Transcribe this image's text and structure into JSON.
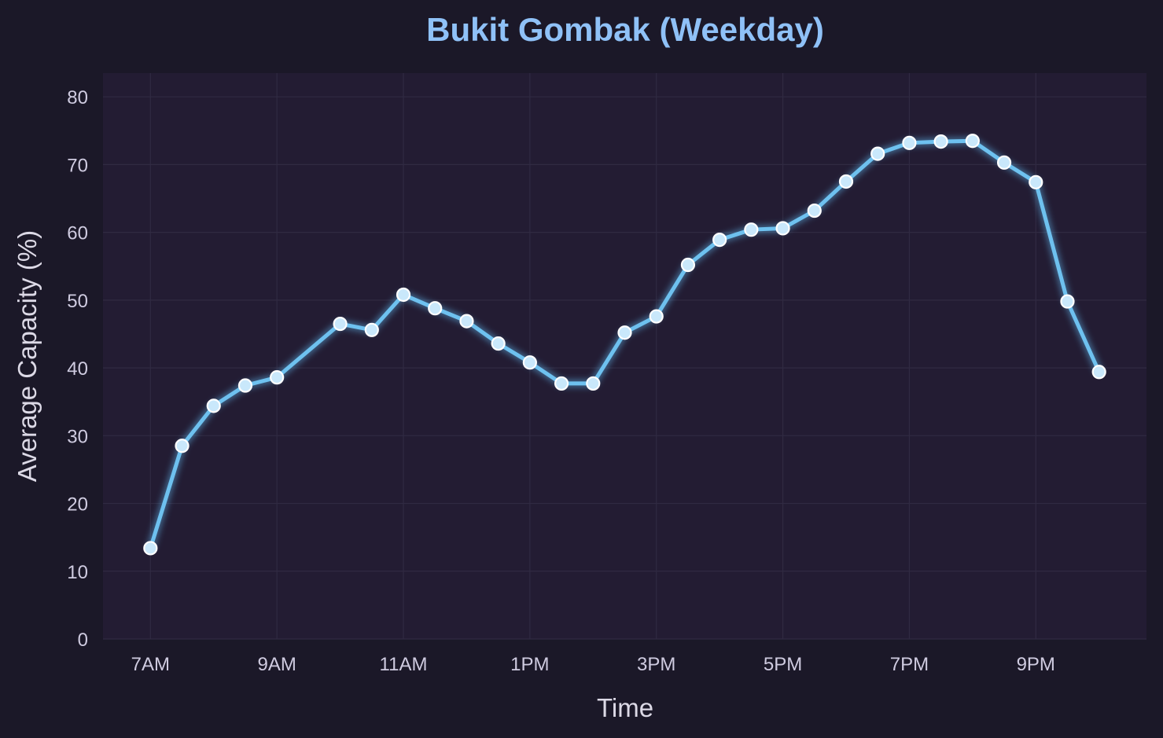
{
  "colors": {
    "background": "#1b1828",
    "plot_background": "#231c33",
    "grid": "#302a42",
    "line": "#6ec1ef",
    "line_glow": "#5aa8da",
    "marker_fill": "#c9e8fb",
    "marker_edge": "#ffffff",
    "title": "#8fc1f7",
    "axis_text": "#dcd9e6",
    "tick_text": "#cfcbe0"
  },
  "chart_data": {
    "type": "line",
    "title": "Bukit Gombak (Weekday)",
    "xlabel": "Time",
    "ylabel": "Average Capacity (%)",
    "xlim": [
      6.25,
      22.75
    ],
    "ylim": [
      0,
      83.5
    ],
    "grid": true,
    "x_ticks": [
      {
        "value": 7,
        "label": "7AM"
      },
      {
        "value": 9,
        "label": "9AM"
      },
      {
        "value": 11,
        "label": "11AM"
      },
      {
        "value": 13,
        "label": "1PM"
      },
      {
        "value": 15,
        "label": "3PM"
      },
      {
        "value": 17,
        "label": "5PM"
      },
      {
        "value": 19,
        "label": "7PM"
      },
      {
        "value": 21,
        "label": "9PM"
      }
    ],
    "y_ticks": [
      {
        "value": 0,
        "label": "0"
      },
      {
        "value": 10,
        "label": "10"
      },
      {
        "value": 20,
        "label": "20"
      },
      {
        "value": 30,
        "label": "30"
      },
      {
        "value": 40,
        "label": "40"
      },
      {
        "value": 50,
        "label": "50"
      },
      {
        "value": 60,
        "label": "60"
      },
      {
        "value": 70,
        "label": "70"
      },
      {
        "value": 80,
        "label": "80"
      }
    ],
    "series": [
      {
        "x": [
          7,
          7.5,
          8,
          8.5,
          9,
          10,
          10.5,
          11,
          11.5,
          12,
          12.5,
          13,
          13.5,
          14,
          14.5,
          15,
          15.5,
          16,
          16.5,
          17,
          17.5,
          18,
          18.5,
          19,
          19.5,
          20,
          20.5,
          21,
          21.5,
          22
        ],
        "values": [
          13.4,
          28.5,
          34.4,
          37.4,
          38.6,
          46.5,
          45.6,
          50.8,
          48.8,
          46.9,
          43.6,
          40.8,
          37.7,
          37.7,
          45.2,
          47.6,
          55.2,
          58.9,
          60.4,
          60.6,
          63.2,
          67.5,
          71.6,
          73.2,
          73.4,
          73.5,
          70.3,
          67.4,
          49.8,
          39.4
        ]
      }
    ]
  }
}
